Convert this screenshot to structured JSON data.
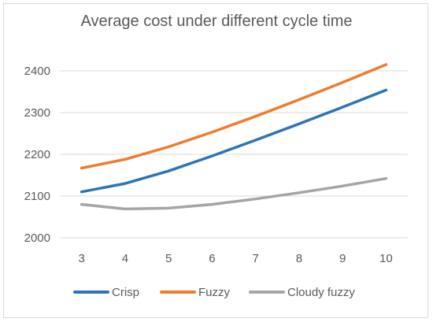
{
  "chart_data": {
    "type": "line",
    "title": "Average cost under different cycle time",
    "xlabel": "",
    "ylabel": "",
    "categories": [
      3,
      4,
      5,
      6,
      7,
      8,
      9,
      10
    ],
    "ylim": [
      2000,
      2400
    ],
    "yticks": [
      2000,
      2100,
      2200,
      2300,
      2400
    ],
    "grid": true,
    "legend_position": "bottom",
    "series": [
      {
        "name": "Crisp",
        "color": "#2e75b6",
        "values": [
          2110,
          2130,
          2160,
          2196,
          2234,
          2273,
          2313,
          2354
        ]
      },
      {
        "name": "Fuzzy",
        "color": "#ed7d31",
        "values": [
          2167,
          2188,
          2218,
          2253,
          2291,
          2331,
          2372,
          2415
        ]
      },
      {
        "name": "Cloudy fuzzy",
        "color": "#a5a5a5",
        "values": [
          2080,
          2069,
          2071,
          2080,
          2093,
          2108,
          2124,
          2142
        ]
      }
    ]
  }
}
